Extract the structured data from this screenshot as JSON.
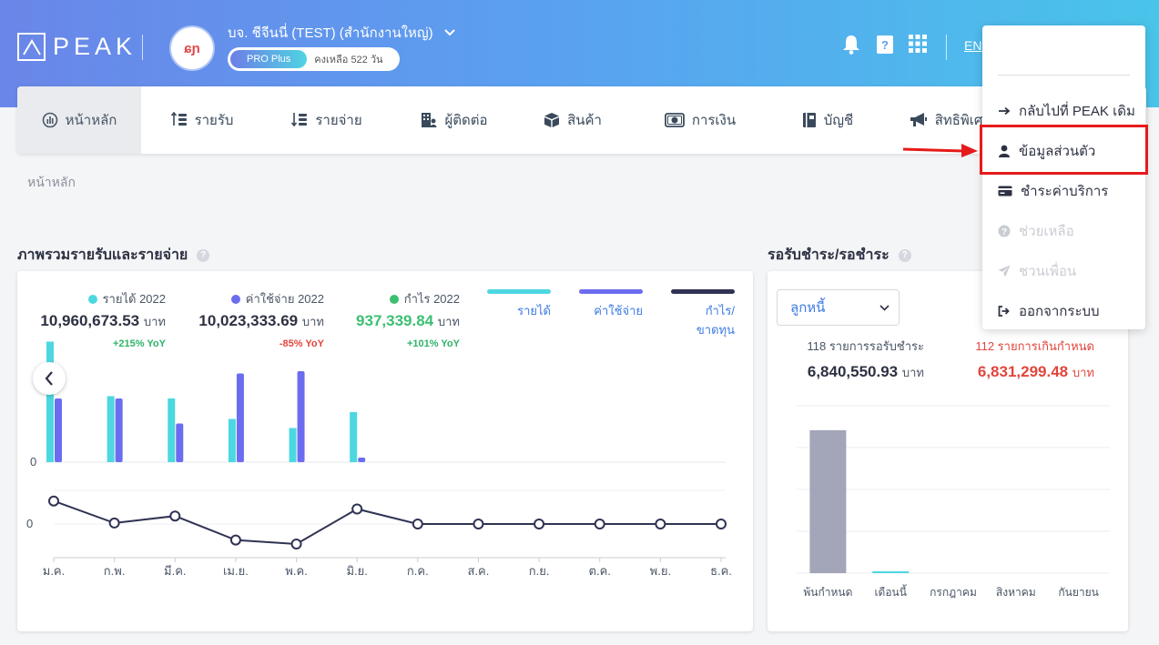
{
  "header": {
    "logo": "PEAK",
    "company_avatar_text": "ɕɲ",
    "company_name": "บจ. ชีจีนนี่ (TEST) (สำนักงานใหญ่)",
    "plan": "PRO Plus",
    "plan_remaining": "คงเหลือ 522 วัน",
    "lang": "EN"
  },
  "nav": {
    "items": [
      {
        "label": "หน้าหลัก",
        "icon": "dashboard-icon"
      },
      {
        "label": "รายรับ",
        "icon": "income-icon"
      },
      {
        "label": "รายจ่าย",
        "icon": "expense-icon"
      },
      {
        "label": "ผู้ติดต่อ",
        "icon": "contacts-icon"
      },
      {
        "label": "สินค้า",
        "icon": "product-box-icon"
      },
      {
        "label": "การเงิน",
        "icon": "money-icon"
      },
      {
        "label": "บัญชี",
        "icon": "account-book-icon"
      },
      {
        "label": "สิทธิพิเศษ",
        "icon": "megaphone-icon"
      }
    ]
  },
  "breadcrumb": "หน้าหลัก",
  "overview": {
    "title": "ภาพรวมรายรับและรายจ่าย",
    "stats": [
      {
        "label": "รายได้ 2022",
        "value": "10,960,673.53",
        "unit": "บาท",
        "yoy": "+215% YoY",
        "color": "#4dd7e1",
        "value_color": "#2d3142",
        "yoy_color": "#2fb36a"
      },
      {
        "label": "ค่าใช้จ่าย 2022",
        "value": "10,023,333.69",
        "unit": "บาท",
        "yoy": "-85% YoY",
        "color": "#6c6cf0",
        "value_color": "#2d3142",
        "yoy_color": "#e2453c"
      },
      {
        "label": "กำไร 2022",
        "value": "937,339.84",
        "unit": "บาท",
        "yoy": "+101% YoY",
        "color": "#3cbf73",
        "value_color": "#3cbf73",
        "yoy_color": "#2fb36a"
      }
    ],
    "legend": [
      {
        "label": "รายได้",
        "color": "#4dd7e1"
      },
      {
        "label": "ค่าใช้จ่าย",
        "color": "#6c6cf0"
      },
      {
        "label": "กำไร/ขาดทุน",
        "color": "#2f3353"
      }
    ]
  },
  "receivables": {
    "title": "รอรับชำระ/รอชำระ",
    "select_value": "ลูกหนี้",
    "due_label": "118 รายการรอรับชำระ",
    "due_value": "6,840,550.93",
    "overdue_label": "112 รายการเกินกำหนด",
    "overdue_value": "6,831,299.48",
    "unit": "บาท"
  },
  "dropdown": {
    "items": [
      {
        "label": "กลับไปที่ PEAK เดิม",
        "icon": "arrow-right-icon",
        "disabled": false
      },
      {
        "label": "ข้อมูลส่วนตัว",
        "icon": "user-icon",
        "disabled": false
      },
      {
        "label": "ชำระค่าบริการ",
        "icon": "credit-card-icon",
        "disabled": false
      },
      {
        "label": "ช่วยเหลือ",
        "icon": "help-icon",
        "disabled": true
      },
      {
        "label": "ชวนเพื่อน",
        "icon": "paper-plane-icon",
        "disabled": true
      },
      {
        "label": "ออกจากระบบ",
        "icon": "sign-out-icon",
        "disabled": false
      }
    ]
  },
  "chart_data": [
    {
      "type": "bar",
      "categories": [
        "ม.ค.",
        "ก.พ.",
        "มี.ค.",
        "เม.ย.",
        "พ.ค.",
        "มิ.ย."
      ],
      "series": [
        {
          "name": "รายได้",
          "values": [
            0.53,
            0.29,
            0.28,
            0.19,
            0.15,
            0.22
          ]
        },
        {
          "name": "ค่าใช้จ่าย",
          "values": [
            0.28,
            0.28,
            0.17,
            0.39,
            0.4,
            0.02
          ]
        }
      ],
      "yticks": [
        "0"
      ],
      "ylim": [
        0,
        0.6
      ]
    },
    {
      "type": "line",
      "categories": [
        "ม.ค.",
        "ก.พ.",
        "มี.ค.",
        "เม.ย.",
        "พ.ค.",
        "มิ.ย.",
        "ก.ค.",
        "ส.ค.",
        "ก.ย.",
        "ต.ค.",
        "พ.ย.",
        "ธ.ค."
      ],
      "series": [
        {
          "name": "กำไร/ขาดทุน",
          "values": [
            0.23,
            0.01,
            0.08,
            -0.16,
            -0.2,
            0.15,
            0,
            0,
            0,
            0,
            0,
            0
          ]
        }
      ],
      "yticks": [
        "0"
      ],
      "ylim": [
        -0.35,
        0.35
      ]
    },
    {
      "type": "bar",
      "categories": [
        "พ้นกำหนด",
        "เดือนนี้",
        "กรกฎาคม",
        "สิงหาคม",
        "กันยายน"
      ],
      "series": [
        {
          "name": "ลูกหนี้",
          "values": [
            6831299.48,
            9251.45,
            0,
            0,
            0
          ],
          "colors": [
            "#a3a5b9",
            "#4dd7e1",
            "#a3a5b9",
            "#a3a5b9",
            "#a3a5b9"
          ]
        }
      ],
      "ylim": [
        0,
        8000000
      ]
    }
  ]
}
